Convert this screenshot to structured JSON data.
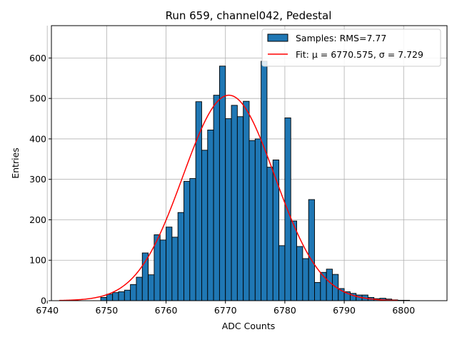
{
  "chart_data": {
    "type": "bar",
    "title": "Run 659, channel042, Pedestal",
    "xlabel": "ADC Counts",
    "ylabel": "Entries",
    "xlim": [
      6740.7,
      6807.3
    ],
    "ylim": [
      0,
      680
    ],
    "xticks": [
      6740,
      6750,
      6760,
      6770,
      6780,
      6790,
      6800
    ],
    "yticks": [
      0,
      100,
      200,
      300,
      400,
      500,
      600
    ],
    "grid": true,
    "legend_position": "top-right",
    "bin_start": 6742,
    "bin_width": 1,
    "bar_color": "#1f77b4",
    "fit_color": "#ff0000",
    "series": [
      {
        "name": "Samples: RMS=7.77",
        "values": [
          0,
          0,
          0,
          0,
          0,
          0,
          0,
          8,
          16,
          20,
          22,
          26,
          40,
          58,
          118,
          64,
          163,
          150,
          182,
          157,
          218,
          295,
          302,
          492,
          372,
          422,
          508,
          580,
          450,
          483,
          455,
          493,
          396,
          400,
          592,
          330,
          348,
          136,
          452,
          197,
          134,
          104,
          250,
          45,
          70,
          78,
          65,
          30,
          22,
          18,
          14,
          14,
          8,
          5,
          6,
          4,
          2,
          1,
          1
        ]
      },
      {
        "name": "Fit: μ = 6770.575, σ = 7.729",
        "type": "line",
        "mu": 6770.575,
        "sigma": 7.729,
        "amplitude": 508,
        "x_range": [
          6742,
          6799
        ]
      }
    ]
  }
}
